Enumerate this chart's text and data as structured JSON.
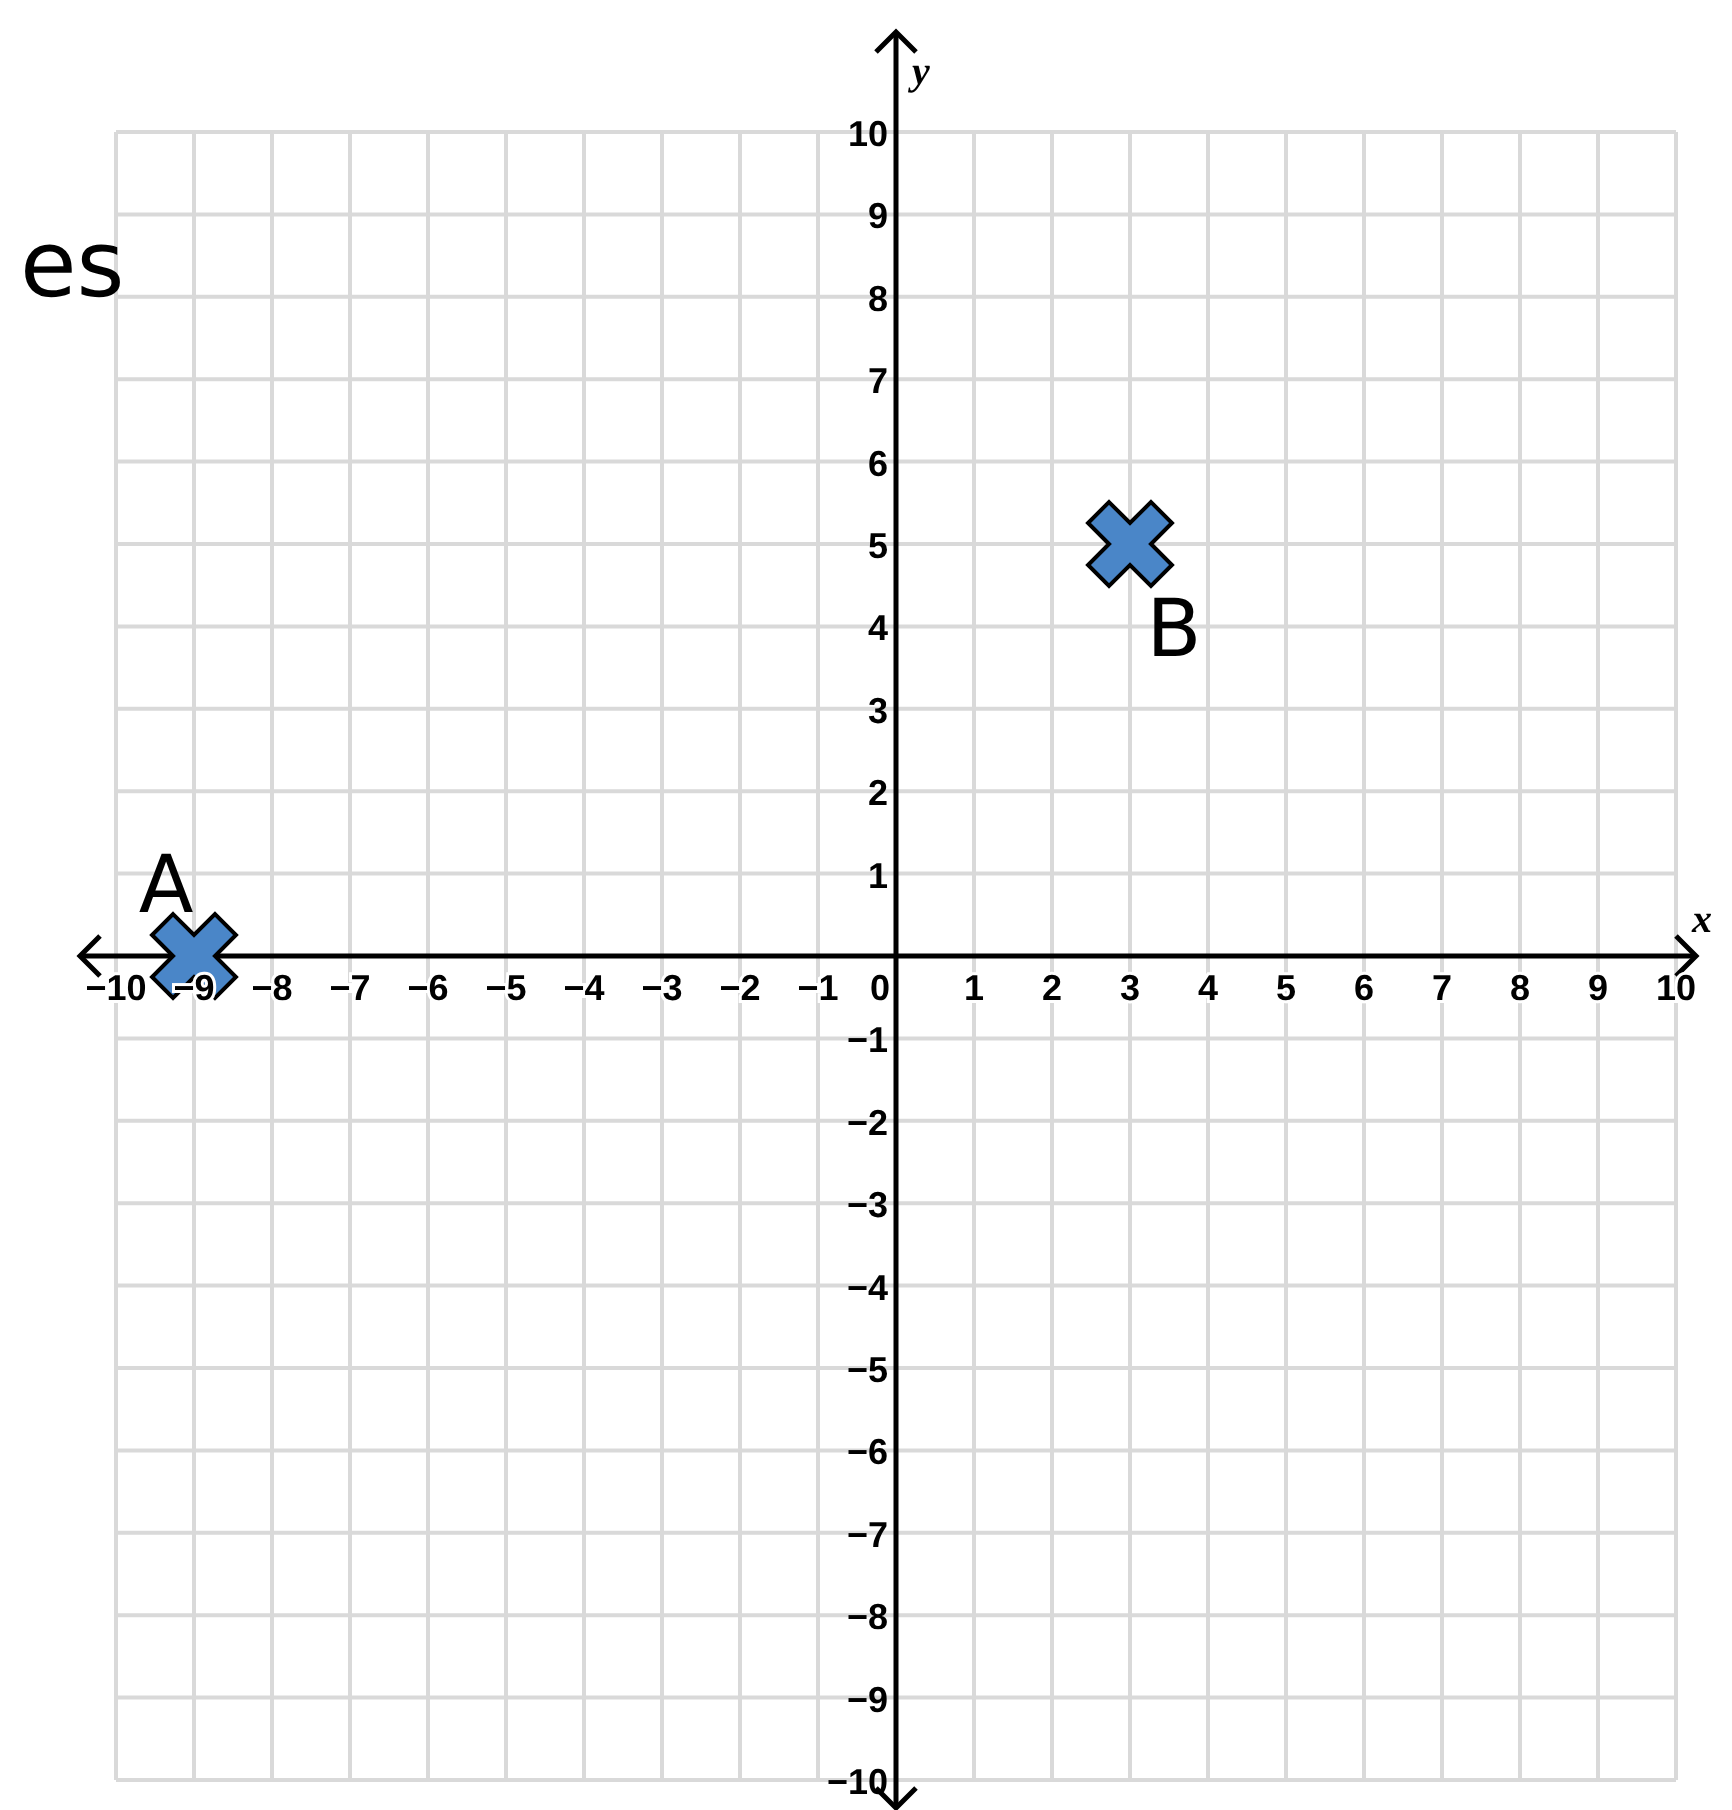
{
  "chart_data": {
    "type": "scatter",
    "xlabel": "x",
    "ylabel": "y",
    "annotations": [
      "es"
    ],
    "xlim": [
      -10,
      10
    ],
    "ylim": [
      -10,
      10
    ],
    "xticks": [
      {
        "value": -10,
        "label": "−10"
      },
      {
        "value": -9,
        "label": "−9"
      },
      {
        "value": -8,
        "label": "−8"
      },
      {
        "value": -7,
        "label": "−7"
      },
      {
        "value": -6,
        "label": "−6"
      },
      {
        "value": -5,
        "label": "−5"
      },
      {
        "value": -4,
        "label": "−4"
      },
      {
        "value": -3,
        "label": "−3"
      },
      {
        "value": -2,
        "label": "−2"
      },
      {
        "value": -1,
        "label": "−1"
      },
      0,
      1,
      2,
      3,
      4,
      5,
      6,
      7,
      8,
      9,
      10
    ],
    "yticks": [
      {
        "value": -10,
        "label": "−10"
      },
      {
        "value": -9,
        "label": "−9"
      },
      {
        "value": -8,
        "label": "−8"
      },
      {
        "value": -7,
        "label": "−7"
      },
      {
        "value": -6,
        "label": "−6"
      },
      {
        "value": -5,
        "label": "−5"
      },
      {
        "value": -4,
        "label": "−4"
      },
      {
        "value": -3,
        "label": "−3"
      },
      {
        "value": -2,
        "label": "−2"
      },
      {
        "value": -1,
        "label": "−1"
      },
      {
        "value": 0,
        "label": null
      },
      1,
      2,
      3,
      4,
      5,
      6,
      7,
      8,
      9,
      10
    ],
    "grid": true,
    "marker": "cross",
    "series": [
      {
        "name": "A",
        "color": "#4a86c8",
        "x": [
          -9
        ],
        "values": [
          0
        ]
      },
      {
        "name": "B",
        "color": "#4a86c8",
        "x": [
          3
        ],
        "values": [
          5
        ]
      }
    ]
  }
}
